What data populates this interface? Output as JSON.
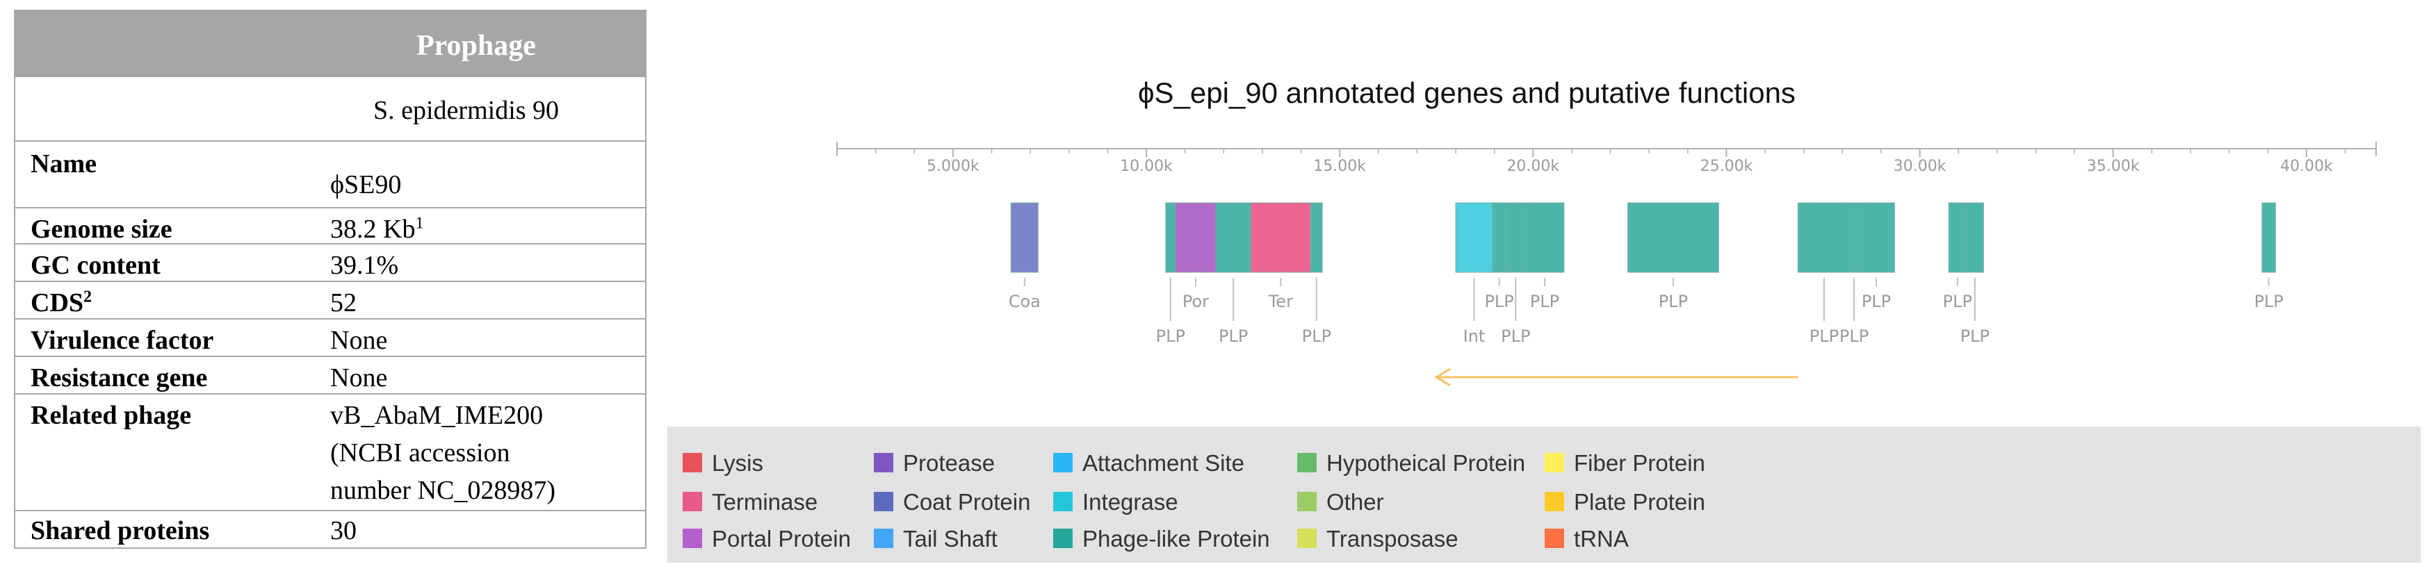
{
  "table": {
    "header": "Prophage",
    "strain": "S. epidermidis 90",
    "rows": [
      {
        "key": "Name",
        "value": "ϕSE90"
      },
      {
        "key": "Genome size",
        "value": "38.2 Kb¹"
      },
      {
        "key": "GC content",
        "value": "39.1%"
      },
      {
        "key": "CDS²",
        "value": "52"
      },
      {
        "key": "Virulence factor",
        "value": "None"
      },
      {
        "key": "Resistance gene",
        "value": "None"
      },
      {
        "key": "Related phage",
        "value_lines": [
          "vB_AbaM_IME200",
          "(NCBI accession",
          "number NC_028987)"
        ]
      },
      {
        "key": "Shared proteins",
        "value": "30"
      }
    ]
  },
  "chart_data": {
    "type": "gene_map",
    "title": "ϕS_epi_90 annotated genes and putative functions",
    "axis": {
      "min": 2000,
      "max": 41800,
      "ticks": [
        5000,
        10000,
        15000,
        20000,
        25000,
        30000,
        35000,
        40000
      ],
      "tick_labels": [
        "5.000k",
        "10.00k",
        "15.00k",
        "20.00k",
        "25.00k",
        "30.00k",
        "35.00k",
        "40.00k"
      ]
    },
    "genes": [
      {
        "start": 6500,
        "end": 7200,
        "type": "Coat Protein",
        "label": "Coa",
        "level": 0
      },
      {
        "start": 10500,
        "end": 10750,
        "type": "Phage-like Protein",
        "label": "PLP",
        "level": 1
      },
      {
        "start": 10750,
        "end": 11800,
        "type": "Portal Protein",
        "label": "Por",
        "level": 0
      },
      {
        "start": 11800,
        "end": 12700,
        "type": "Phage-like Protein",
        "label": "PLP",
        "level": 1
      },
      {
        "start": 12700,
        "end": 14250,
        "type": "Terminase",
        "label": "Ter",
        "level": 0
      },
      {
        "start": 14250,
        "end": 14550,
        "type": "Phage-like Protein",
        "label": "PLP",
        "level": 1
      },
      {
        "start": 18000,
        "end": 18950,
        "type": "Integrase",
        "label": "Int",
        "level": 1
      },
      {
        "start": 18950,
        "end": 19300,
        "type": "Phage-like Protein",
        "label": "PLP",
        "level": 0
      },
      {
        "start": 19300,
        "end": 19800,
        "type": "Phage-like Protein",
        "label": "PLP",
        "level": 1
      },
      {
        "start": 19800,
        "end": 20800,
        "type": "Phage-like Protein",
        "label": "PLP",
        "level": 0
      },
      {
        "start": 22450,
        "end": 24800,
        "type": "Phage-like Protein",
        "label": "PLP",
        "level": 0
      },
      {
        "start": 26850,
        "end": 28200,
        "type": "Phage-like Protein",
        "label": "PLP",
        "level": 1
      },
      {
        "start": 28200,
        "end": 28400,
        "type": "Phage-like Protein",
        "label": "PLP",
        "level": 1
      },
      {
        "start": 28400,
        "end": 29350,
        "type": "Phage-like Protein",
        "label": "PLP",
        "level": 0
      },
      {
        "start": 30750,
        "end": 31200,
        "type": "Phage-like Protein",
        "label": "PLP",
        "level": 0
      },
      {
        "start": 31200,
        "end": 31650,
        "type": "Phage-like Protein",
        "label": "PLP",
        "level": 1
      },
      {
        "start": 38850,
        "end": 39200,
        "type": "Phage-like Protein",
        "label": "PLP",
        "level": 0
      }
    ],
    "arrow": {
      "from": 26850,
      "to": 17500,
      "direction": "reverse"
    }
  },
  "legend": {
    "columns": [
      [
        {
          "label": "Lysis",
          "color": "#e8525a"
        },
        {
          "label": "Terminase",
          "color": "#e85a8a"
        },
        {
          "label": "Portal Protein",
          "color": "#b45fcb"
        }
      ],
      [
        {
          "label": "Protease",
          "color": "#7e57c2"
        },
        {
          "label": "Coat Protein",
          "color": "#5c6bc0"
        },
        {
          "label": "Tail Shaft",
          "color": "#42a5f5"
        }
      ],
      [
        {
          "label": "Attachment Site",
          "color": "#29b6f6"
        },
        {
          "label": "Integrase",
          "color": "#26c6da"
        },
        {
          "label": "Phage-like Protein",
          "color": "#26a69a"
        }
      ],
      [
        {
          "label": "Hypotheical Protein",
          "color": "#66bb6a"
        },
        {
          "label": "Other",
          "color": "#9ccc65"
        },
        {
          "label": "Transposase",
          "color": "#d4e157"
        }
      ],
      [
        {
          "label": "Fiber Protein",
          "color": "#ffee58"
        },
        {
          "label": "Plate Protein",
          "color": "#ffca28"
        },
        {
          "label": "tRNA",
          "color": "#ff7043"
        }
      ]
    ]
  },
  "colors": {
    "Coat Protein": "#7b86c9",
    "Portal Protein": "#b06cc8",
    "Terminase": "#ec6591",
    "Integrase": "#4fd0e0",
    "Phage-like Protein": "#4db6ac",
    "axis": "#b0b0b0",
    "label": "#9a9a9a",
    "arrow": "#f7c062"
  }
}
